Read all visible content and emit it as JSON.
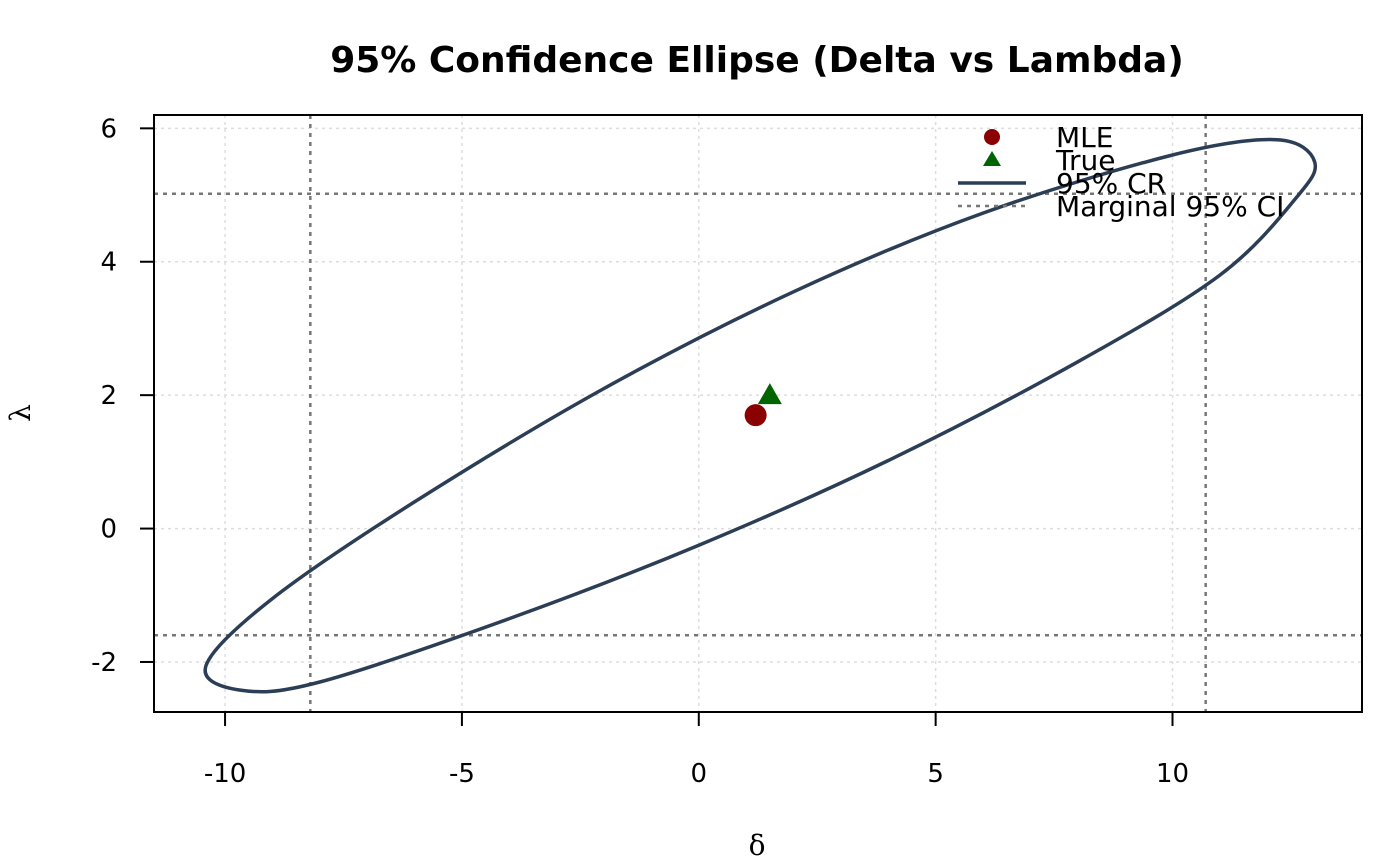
{
  "colors": {
    "ellipse": "#2c3e55",
    "mle": "#8b0000",
    "true_point": "#006400",
    "ci_lines": "#777777",
    "grid": "#dddddd",
    "axes": "#000000"
  },
  "chart_data": {
    "type": "scatter",
    "title": "95% Confidence Ellipse (Delta vs Lambda)",
    "xlabel": "δ",
    "ylabel": "λ",
    "xlim": [
      -11.5,
      14
    ],
    "ylim": [
      -2.75,
      6.2
    ],
    "x_ticks": [
      -10,
      -5,
      0,
      5,
      10
    ],
    "y_ticks": [
      -2,
      0,
      2,
      4,
      6
    ],
    "x_tick_labels": [
      "-10",
      "-5",
      "0",
      "5",
      "10"
    ],
    "y_tick_labels": [
      "-2",
      "0",
      "2",
      "4",
      "6"
    ],
    "grid": true,
    "legend_position": "top-right",
    "mle": {
      "x": 1.2,
      "y": 1.7
    },
    "true": {
      "x": 1.5,
      "y": 2.0
    },
    "ellipse_95_cr": {
      "center": [
        1.2,
        1.7
      ],
      "points": [
        [
          13.0,
          5.5
        ],
        [
          12.2,
          5.83
        ],
        [
          10.0,
          5.6
        ],
        [
          6.0,
          4.73
        ],
        [
          2.0,
          3.55
        ],
        [
          -2.0,
          2.1
        ],
        [
          -6.0,
          0.4
        ],
        [
          -9.0,
          -1.05
        ],
        [
          -10.4,
          -2.05
        ],
        [
          -9.7,
          -2.42
        ],
        [
          -8.0,
          -2.3
        ],
        [
          -4.0,
          -1.35
        ],
        [
          0.0,
          -0.25
        ],
        [
          4.0,
          1.02
        ],
        [
          8.0,
          2.5
        ],
        [
          11.0,
          3.8
        ],
        [
          12.6,
          4.95
        ],
        [
          13.0,
          5.5
        ]
      ]
    },
    "marginal_ci": {
      "delta": [
        -8.2,
        10.7
      ],
      "lambda": [
        -1.6,
        5.02
      ]
    },
    "legend": [
      {
        "label": "MLE",
        "symbol": "circle"
      },
      {
        "label": "True",
        "symbol": "triangle"
      },
      {
        "label": "95% CR",
        "symbol": "solid-line"
      },
      {
        "label": "Marginal 95% CI",
        "symbol": "dotted-line"
      }
    ]
  }
}
